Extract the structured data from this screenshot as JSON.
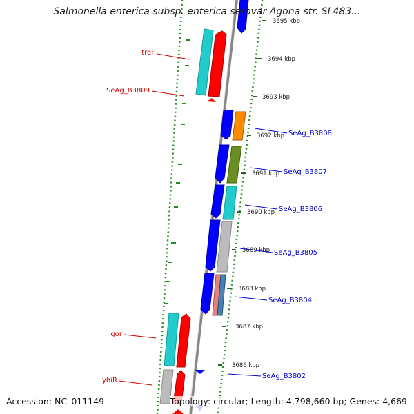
{
  "title": "Salmonella enterica subsp. enterica serovar Agona str. SL483...",
  "footer": {
    "accession": "Accession: NC_011149",
    "summary": "Topology: circular; Length: 4,798,660 bp; Genes: 4,669"
  },
  "colors": {
    "forward_blue": "#0000ff",
    "reverse_red": "#ff0000",
    "cyan": "#22cccc",
    "orange": "#ff8c00",
    "olive": "#6b8e23",
    "grey": "#bbbbbb",
    "pink": "#e88080",
    "steel": "#4682b4",
    "backbone": "#888888",
    "gc_dots": "#228b22"
  },
  "ticks": [
    {
      "label": "3695 kbp"
    },
    {
      "label": "3694 kbp"
    },
    {
      "label": "3693 kbp"
    },
    {
      "label": "3692 kbp"
    },
    {
      "label": "3691 kbp"
    },
    {
      "label": "3690 kbp"
    },
    {
      "label": "3689 kbp"
    },
    {
      "label": "3688 kbp"
    },
    {
      "label": "3687 kbp"
    },
    {
      "label": "3686 kbp"
    }
  ],
  "left_labels": [
    {
      "text": "treF"
    },
    {
      "text": "SeAg_B3809"
    },
    {
      "text": "gor"
    },
    {
      "text": "yhiR"
    }
  ],
  "right_labels": [
    {
      "text": "SeAg_B3808"
    },
    {
      "text": "SeAg_B3807"
    },
    {
      "text": "SeAg_B3806"
    },
    {
      "text": "SeAg_B3805"
    },
    {
      "text": "SeAg_B3804"
    },
    {
      "text": "SeAg_B3802"
    }
  ]
}
